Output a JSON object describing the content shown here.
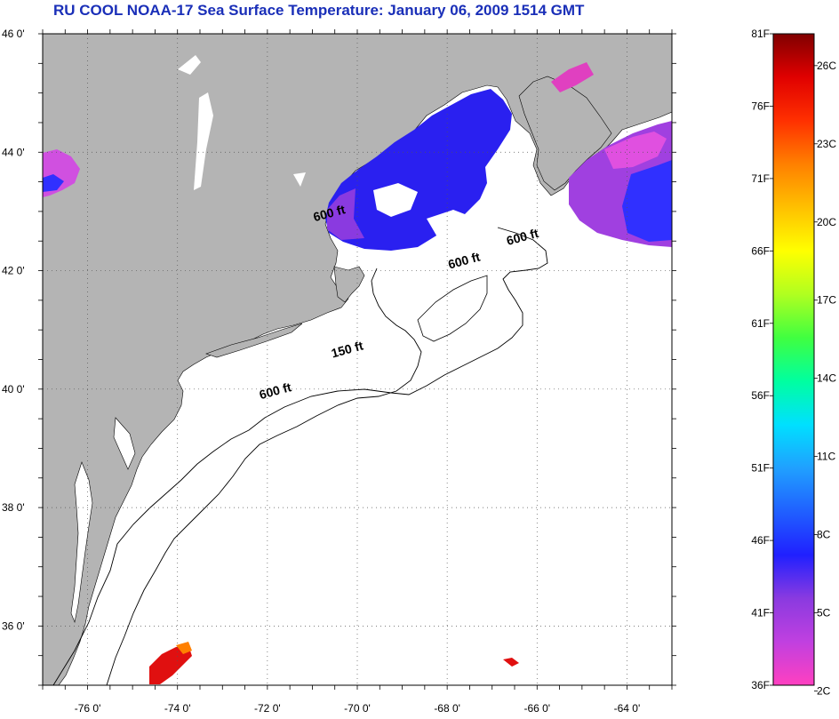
{
  "title": "RU COOL  NOAA-17  Sea Surface Temperature:  January 06, 2009 1514 GMT",
  "map": {
    "lat_range": [
      35,
      46
    ],
    "lon_range": [
      -77,
      -63
    ],
    "lat_ticks": [
      {
        "value": 46,
        "label": "46 0'"
      },
      {
        "value": 44,
        "label": "44 0'"
      },
      {
        "value": 42,
        "label": "42 0'"
      },
      {
        "value": 40,
        "label": "40 0'"
      },
      {
        "value": 38,
        "label": "38 0'"
      },
      {
        "value": 36,
        "label": "36 0'"
      }
    ],
    "lon_ticks": [
      {
        "value": -76,
        "label": "-76 0'"
      },
      {
        "value": -74,
        "label": "-74 0'"
      },
      {
        "value": -72,
        "label": "-72 0'"
      },
      {
        "value": -70,
        "label": "-70 0'"
      },
      {
        "value": -68,
        "label": "-68 0'"
      },
      {
        "value": -66,
        "label": "-66 0'"
      },
      {
        "value": -64,
        "label": "-64 0'"
      }
    ],
    "grid": "dotted",
    "land_color": "#b4b4b4",
    "ocean_color": "#ffffff",
    "contour_labels": [
      {
        "text": "600 ft",
        "lon": -71.8,
        "lat": 39.9
      },
      {
        "text": "150 ft",
        "lon": -70.2,
        "lat": 40.6
      },
      {
        "text": "600 ft",
        "lon": -67.6,
        "lat": 42.1
      },
      {
        "text": "600 ft",
        "lon": -66.3,
        "lat": 42.5
      },
      {
        "text": "600 ft",
        "lon": -70.6,
        "lat": 42.9
      }
    ]
  },
  "colorbar": {
    "fahrenheit_labels": [
      "81F",
      "76F",
      "71F",
      "66F",
      "61F",
      "56F",
      "51F",
      "46F",
      "41F",
      "36F"
    ],
    "celsius_labels": [
      "26C",
      "23C",
      "20C",
      "17C",
      "14C",
      "11C",
      "8C",
      "5C",
      "2C"
    ],
    "f_range": [
      36,
      81
    ],
    "colors": [
      "#ff40c0",
      "#c040e0",
      "#8a3ae0",
      "#2020ff",
      "#2060ff",
      "#20a0ff",
      "#00e0ff",
      "#00ffa0",
      "#40ff40",
      "#b0ff20",
      "#ffff00",
      "#ffc000",
      "#ff8000",
      "#ff3000",
      "#e00000",
      "#800000"
    ]
  }
}
